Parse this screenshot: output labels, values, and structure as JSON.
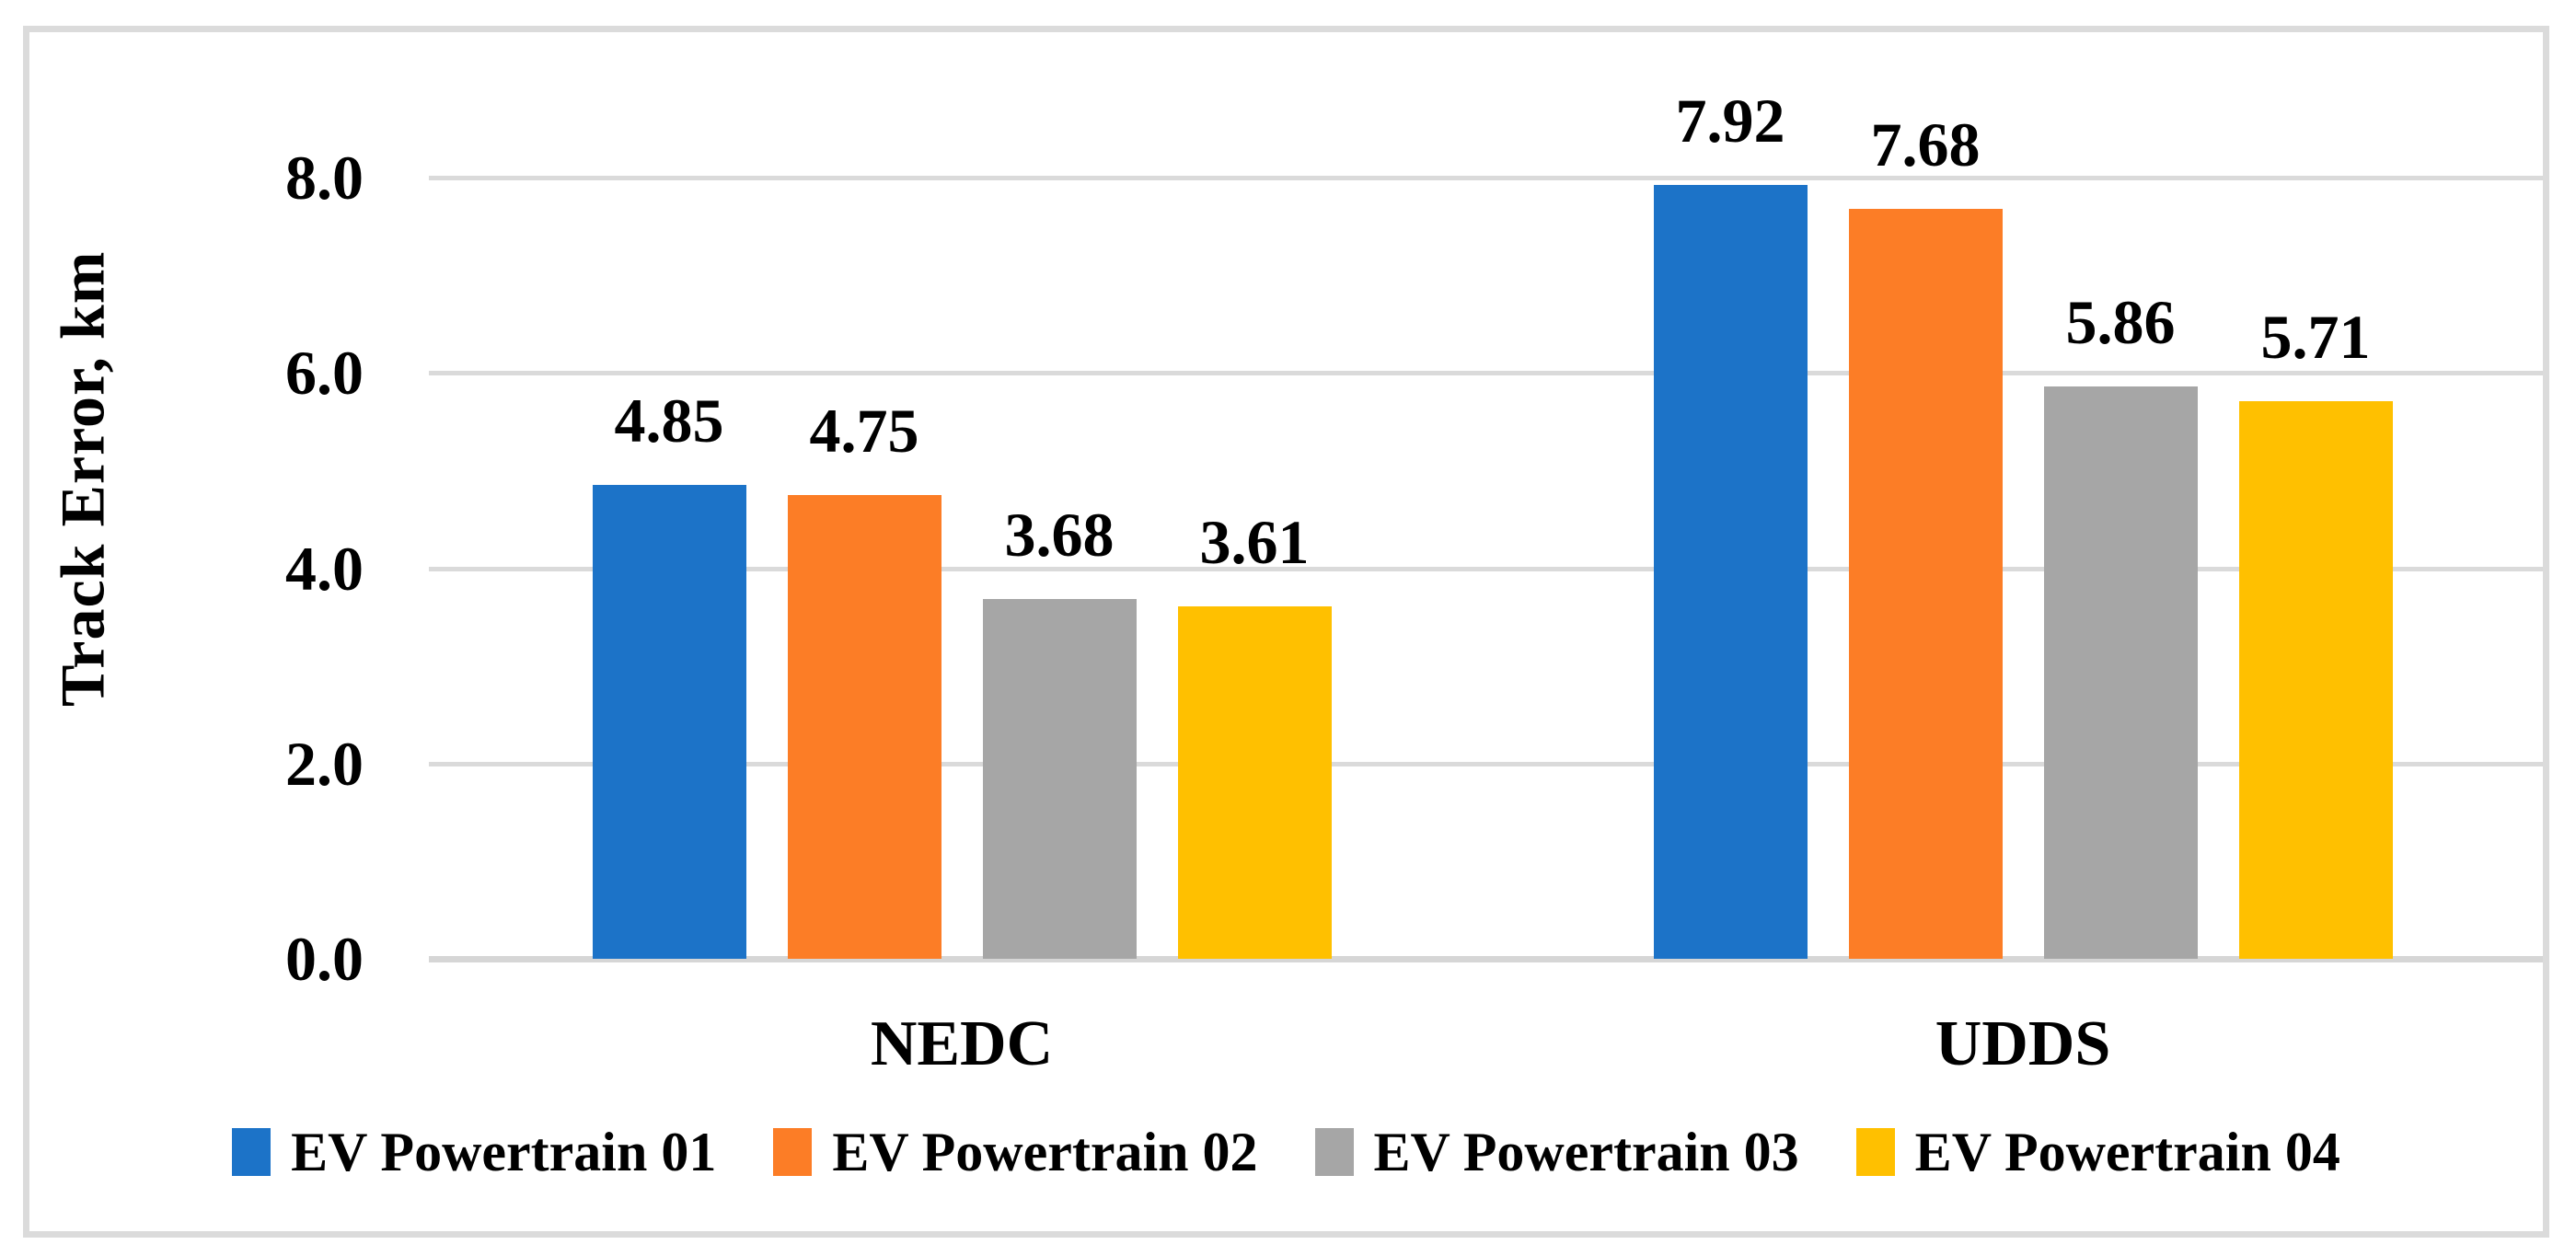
{
  "chart_data": {
    "type": "bar",
    "title": "",
    "categories": [
      "NEDC",
      "UDDS"
    ],
    "series": [
      {
        "name": "EV Powertrain 01",
        "color": "#1C73C8",
        "values": [
          4.85,
          7.92
        ]
      },
      {
        "name": "EV Powertrain 02",
        "color": "#FC7D26",
        "values": [
          4.75,
          7.68
        ]
      },
      {
        "name": "EV Powertrain 03",
        "color": "#A6A6A6",
        "values": [
          3.68,
          5.86
        ]
      },
      {
        "name": "EV Powertrain 04",
        "color": "#FFC000",
        "values": [
          3.61,
          5.71
        ]
      }
    ],
    "data_labels": [
      "4.85",
      "4.75",
      "3.68",
      "3.61",
      "7.92",
      "7.68",
      "5.86",
      "5.71"
    ],
    "ylabel": "Track Error, km",
    "xlabel": "",
    "ylim": [
      0,
      8.8
    ],
    "yticks": [
      0.0,
      2.0,
      4.0,
      6.0,
      8.0
    ],
    "ytick_labels": [
      "0.0",
      "2.0",
      "4.0",
      "6.0",
      "8.0"
    ],
    "grid": true,
    "legend_position": "bottom",
    "colors": {
      "gridline": "#DADADA",
      "frame_border": "#DBDBDB",
      "text": "#000000",
      "background": "#FFFFFF"
    }
  }
}
